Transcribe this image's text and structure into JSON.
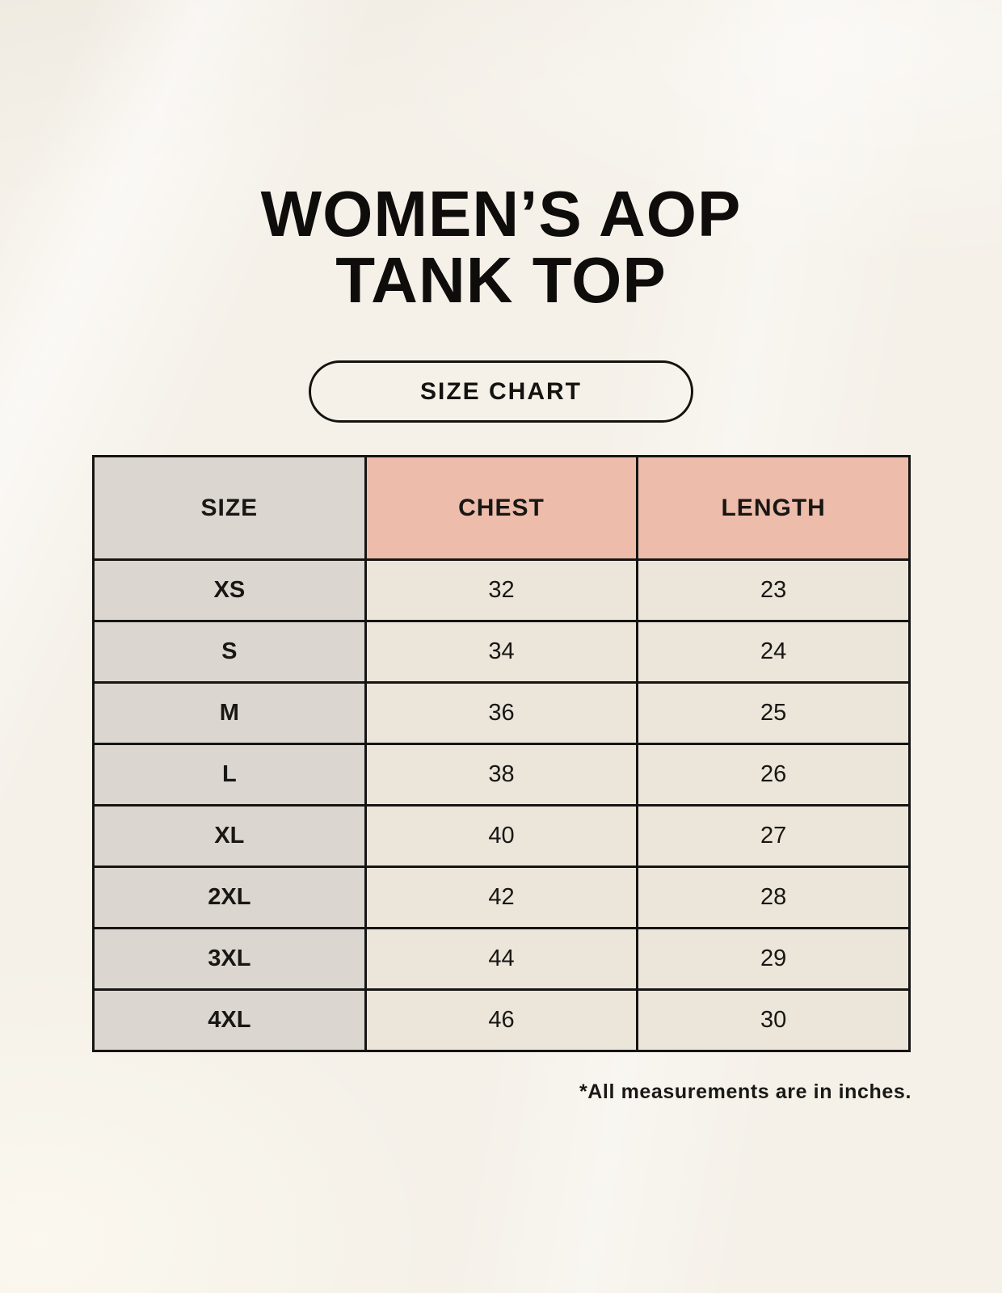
{
  "title": {
    "line1": "WOMEN’S AOP",
    "line2": "TANK TOP"
  },
  "badge": {
    "label": "SIZE CHART"
  },
  "table": {
    "headers": [
      "SIZE",
      "CHEST",
      "LENGTH"
    ],
    "rows": [
      [
        "XS",
        "32",
        "23"
      ],
      [
        "S",
        "34",
        "24"
      ],
      [
        "M",
        "36",
        "25"
      ],
      [
        "L",
        "38",
        "26"
      ],
      [
        "XL",
        "40",
        "27"
      ],
      [
        "2XL",
        "42",
        "28"
      ],
      [
        "3XL",
        "44",
        "29"
      ],
      [
        "4XL",
        "46",
        "30"
      ]
    ]
  },
  "footnote": "*All measurements are in inches.",
  "colors": {
    "page_bg": "#f5f1e9",
    "label_column_bg": "#dcd6d0",
    "accent_header_bg": "#edbcab",
    "value_cell_bg": "#ebe5da",
    "table_border": "#161513",
    "text": "#14130f"
  },
  "chart_data": {
    "type": "table",
    "title": "WOMEN’S AOP TANK TOP",
    "subtitle": "SIZE CHART",
    "columns": [
      "SIZE",
      "CHEST",
      "LENGTH"
    ],
    "rows": [
      [
        "XS",
        32,
        23
      ],
      [
        "S",
        34,
        24
      ],
      [
        "M",
        36,
        25
      ],
      [
        "L",
        38,
        26
      ],
      [
        "XL",
        40,
        27
      ],
      [
        "2XL",
        42,
        28
      ],
      [
        "3XL",
        44,
        29
      ],
      [
        "4XL",
        46,
        30
      ]
    ],
    "units": "inches",
    "note": "*All measurements are in inches."
  }
}
